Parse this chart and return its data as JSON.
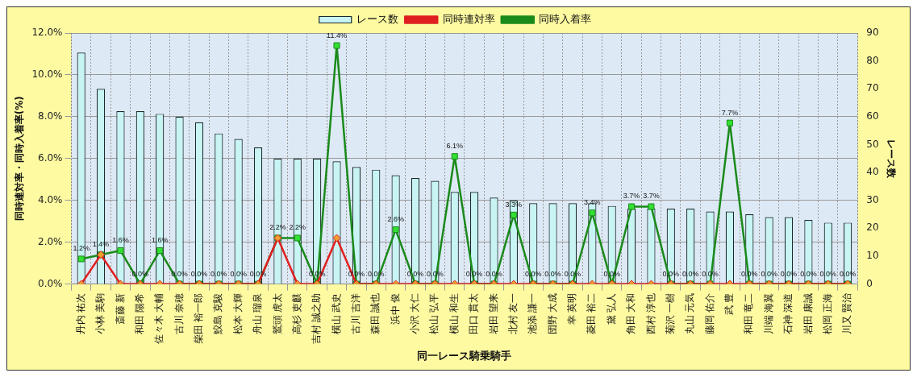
{
  "chart_data": {
    "type": "bar",
    "xlabel": "同一レース騎乗騎手",
    "ylabel": "同時連対率・同時入着率(%)",
    "y2label": "レース数",
    "categories": [
      "丹内 祐次",
      "小林 美駒",
      "斎藤 新",
      "和田 陽希",
      "佐々木 大輔",
      "古川 奈穂",
      "柴田 裕一郎",
      "鮫島 克駿",
      "松本 大輝",
      "舟山 瑠泉",
      "鷲頭 虎太",
      "高杉 吏麒",
      "吉村 誠之助",
      "横山 武史",
      "古川 吉洋",
      "森田 誠也",
      "浜中 俊",
      "小沢 大仁",
      "松山 弘平",
      "横山 和生",
      "田口 貫太",
      "岩田 望来",
      "北村 友一",
      "池添 謙一",
      "団野 大成",
      "幸 英明",
      "菱田 裕二",
      "黛 弘人",
      "角田 大和",
      "西村 淳也",
      "菊沢 一樹",
      "丸山 元気",
      "藤岡 佑介",
      "武 豊",
      "和田 竜二",
      "川端 海翼",
      "石神 深道",
      "岩田 康誠",
      "松岡 正海",
      "川又 賢治"
    ],
    "series": [
      {
        "name": "レース数",
        "axis": "y2",
        "color": "#c8f4f4",
        "values": [
          83,
          70,
          62,
          62,
          61,
          60,
          58,
          54,
          52,
          49,
          45,
          45,
          45,
          44,
          42,
          41,
          39,
          38,
          37,
          33,
          33,
          31,
          30,
          29,
          29,
          29,
          29,
          28,
          27,
          27,
          27,
          27,
          26,
          26,
          25,
          24,
          24,
          23,
          22,
          22
        ]
      },
      {
        "name": "同時連対率",
        "type": "line",
        "marker": "diamond",
        "color": "#e02020",
        "values": [
          0,
          1.4,
          0,
          0,
          0,
          0,
          0,
          0,
          0,
          0,
          2.2,
          0,
          0,
          2.2,
          0,
          0,
          0,
          0,
          0,
          0,
          0,
          0,
          0,
          0,
          0,
          0,
          0,
          0,
          0,
          0,
          0,
          0,
          0,
          0,
          0,
          0,
          0,
          0,
          0,
          0
        ]
      },
      {
        "name": "同時入着率",
        "type": "line",
        "marker": "square",
        "color": "#1a8a1a",
        "values": [
          1.2,
          1.4,
          1.6,
          0,
          1.6,
          0,
          0,
          0,
          0,
          0,
          2.2,
          2.2,
          0,
          11.4,
          0,
          0,
          2.6,
          0,
          0,
          6.1,
          0,
          0,
          3.3,
          0,
          0,
          0,
          3.4,
          0,
          3.7,
          3.7,
          0,
          0,
          0,
          7.7,
          0,
          0,
          0,
          0,
          0,
          0
        ],
        "value_labels": [
          "1.2%",
          "1.4%",
          "1.6%",
          "0.0%",
          "1.6%",
          "0.0%",
          "0.0%",
          "0.0%",
          "0.0%",
          "0.0%",
          "2.2%",
          "2.2%",
          "0.0%",
          "11.4%",
          "0.0%",
          "0.0%",
          "2.6%",
          "0.0%",
          "0.0%",
          "6.1%",
          "0.0%",
          "0.0%",
          "3.3%",
          "0.0%",
          "0.0%",
          "0.0%",
          "3.4%",
          "0.0%",
          "3.7%",
          "3.7%",
          "0.0%",
          "0.0%",
          "0.0%",
          "7.7%",
          "0.0%",
          "0.0%",
          "0.0%",
          "0.0%",
          "0.0%",
          "0.0%"
        ]
      }
    ],
    "ylim": [
      0,
      12
    ],
    "yticks": [
      {
        "value": 0,
        "label": "0.0%"
      },
      {
        "value": 2,
        "label": "2.0%"
      },
      {
        "value": 4,
        "label": "4.0%"
      },
      {
        "value": 6,
        "label": "6.0%"
      },
      {
        "value": 8,
        "label": "8.0%"
      },
      {
        "value": 10,
        "label": "10.0%"
      },
      {
        "value": 12,
        "label": "12.0%"
      }
    ],
    "y2lim": [
      0,
      90
    ],
    "y2ticks": [
      0,
      10,
      20,
      30,
      40,
      50,
      60,
      70,
      80,
      90
    ],
    "grid": true,
    "legend": "top",
    "line_style": "solid"
  }
}
